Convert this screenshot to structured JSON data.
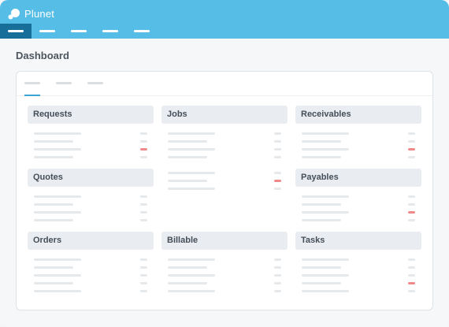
{
  "app": {
    "brand": "Plunet",
    "logo_icon": "plunet-logo-icon"
  },
  "colors": {
    "header": "#56bde6",
    "nav_active": "#176f99",
    "accent": "#3aa5d2",
    "alert": "#f08a8a"
  },
  "nav": {
    "items": [
      {
        "active": true
      },
      {
        "active": false
      },
      {
        "active": false
      },
      {
        "active": false
      },
      {
        "active": false
      }
    ]
  },
  "page": {
    "title": "Dashboard"
  },
  "tabs": [
    {
      "active": true
    },
    {
      "active": false
    },
    {
      "active": false
    }
  ],
  "widgets": [
    {
      "id": "requests",
      "title": "Requests",
      "rows": [
        {
          "alert": false
        },
        {
          "alert": false
        },
        {
          "alert": true
        },
        {
          "alert": false
        }
      ]
    },
    {
      "id": "jobs",
      "title": "Jobs",
      "rows": [
        {
          "alert": false
        },
        {
          "alert": false
        },
        {
          "alert": false
        },
        {
          "alert": false
        }
      ]
    },
    {
      "id": "receivables",
      "title": "Receivables",
      "rows": [
        {
          "alert": false
        },
        {
          "alert": false
        },
        {
          "alert": true
        },
        {
          "alert": false
        }
      ]
    },
    {
      "id": "quotes",
      "title": "Quotes",
      "rows": [
        {
          "alert": false
        },
        {
          "alert": false
        },
        {
          "alert": false
        },
        {
          "alert": false
        }
      ]
    },
    {
      "id": "jobs-continued",
      "title": "",
      "rows": [
        {
          "alert": false
        },
        {
          "alert": true
        },
        {
          "alert": false
        }
      ]
    },
    {
      "id": "payables",
      "title": "Payables",
      "rows": [
        {
          "alert": false
        },
        {
          "alert": false
        },
        {
          "alert": true
        },
        {
          "alert": false
        }
      ]
    },
    {
      "id": "orders",
      "title": "Orders",
      "rows": [
        {
          "alert": false
        },
        {
          "alert": false
        },
        {
          "alert": false
        },
        {
          "alert": false
        },
        {
          "alert": false
        }
      ]
    },
    {
      "id": "billable",
      "title": "Billable",
      "rows": [
        {
          "alert": false
        },
        {
          "alert": false
        },
        {
          "alert": false
        },
        {
          "alert": false
        },
        {
          "alert": false
        }
      ]
    },
    {
      "id": "tasks",
      "title": "Tasks",
      "rows": [
        {
          "alert": false
        },
        {
          "alert": false
        },
        {
          "alert": false
        },
        {
          "alert": true
        },
        {
          "alert": false
        }
      ]
    }
  ]
}
